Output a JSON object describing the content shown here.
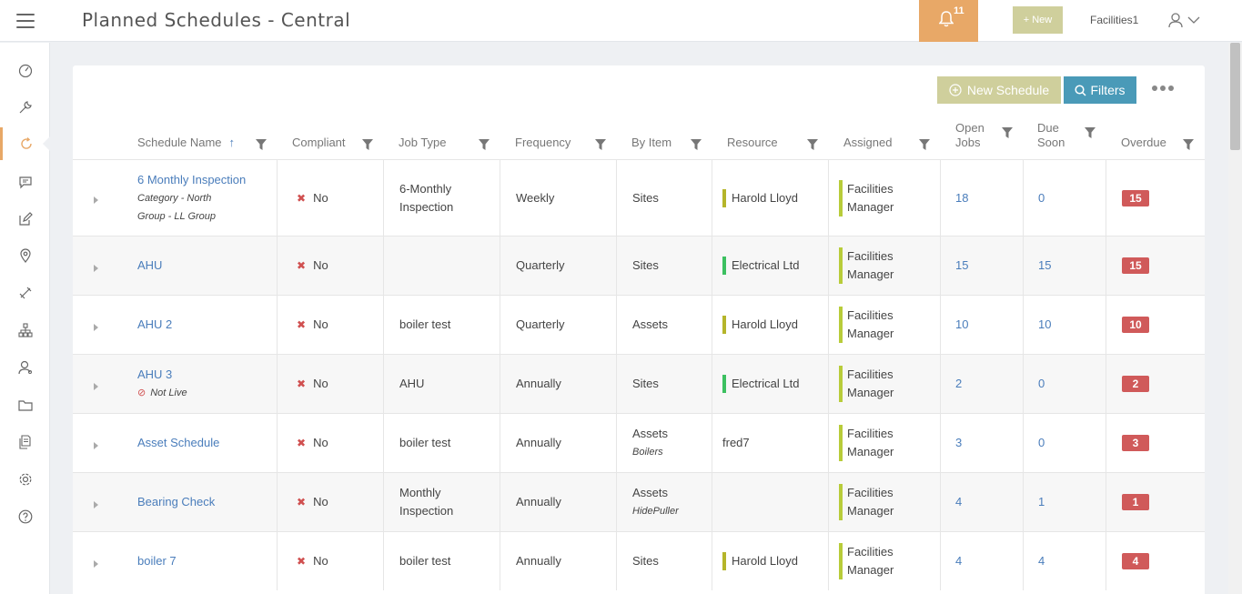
{
  "header": {
    "title": "Planned Schedules - Central",
    "notification_count": "11",
    "new_label": "+ New",
    "user": "Facilities1"
  },
  "sidebar": {
    "items": [
      {
        "icon": "dashboard-icon"
      },
      {
        "icon": "wrench-icon"
      },
      {
        "icon": "refresh-icon",
        "active": true
      },
      {
        "icon": "message-icon"
      },
      {
        "icon": "edit-icon"
      },
      {
        "icon": "location-icon"
      },
      {
        "icon": "tools-icon"
      },
      {
        "icon": "hierarchy-icon"
      },
      {
        "icon": "contacts-icon"
      },
      {
        "icon": "folder-icon"
      },
      {
        "icon": "documents-icon"
      },
      {
        "icon": "settings-icon"
      },
      {
        "icon": "help-icon"
      }
    ]
  },
  "toolbar": {
    "new_schedule_label": "New Schedule",
    "filters_label": "Filters"
  },
  "columns": {
    "name": "Schedule Name",
    "compliant": "Compliant",
    "job_type": "Job Type",
    "frequency": "Frequency",
    "by_item": "By Item",
    "resource": "Resource",
    "assigned": "Assigned",
    "open_jobs_1": "Open",
    "open_jobs_2": "Jobs",
    "due_soon_1": "Due",
    "due_soon_2": "Soon",
    "overdue": "Overdue"
  },
  "colors": {
    "accent_orange": "#e8a867",
    "olive": "#cfcf9c",
    "blue": "#4a9ab8",
    "link": "#4a7dbb",
    "overdue": "#d05a5a",
    "resource_olive": "#b5b52a",
    "resource_green": "#3cc060",
    "assigned_bar": "#b8cc3a"
  },
  "rows": [
    {
      "name": "6 Monthly Inspection",
      "sub1": "Category - North",
      "sub2": "Group - LL Group",
      "compliant": "No",
      "job_type_1": "6-Monthly",
      "job_type_2": "Inspection",
      "frequency": "Weekly",
      "by_item": "Sites",
      "by_item_sub": "",
      "resource": "Harold Lloyd",
      "resource_bar": "olive",
      "assigned_1": "Facilities",
      "assigned_2": "Manager",
      "open_jobs": "18",
      "due_soon": "0",
      "overdue": "15"
    },
    {
      "name": "AHU",
      "sub1": "",
      "sub2": "",
      "compliant": "No",
      "job_type_1": "",
      "job_type_2": "",
      "frequency": "Quarterly",
      "by_item": "Sites",
      "by_item_sub": "",
      "resource": "Electrical Ltd",
      "resource_bar": "green",
      "assigned_1": "Facilities",
      "assigned_2": "Manager",
      "open_jobs": "15",
      "due_soon": "15",
      "overdue": "15"
    },
    {
      "name": "AHU 2",
      "sub1": "",
      "sub2": "",
      "compliant": "No",
      "job_type_1": "boiler test",
      "job_type_2": "",
      "frequency": "Quarterly",
      "by_item": "Assets",
      "by_item_sub": "",
      "resource": "Harold Lloyd",
      "resource_bar": "olive",
      "assigned_1": "Facilities",
      "assigned_2": "Manager",
      "open_jobs": "10",
      "due_soon": "10",
      "overdue": "10"
    },
    {
      "name": "AHU 3",
      "sub1": "Not Live",
      "sub2": "",
      "compliant": "No",
      "job_type_1": "AHU",
      "job_type_2": "",
      "frequency": "Annually",
      "by_item": "Sites",
      "by_item_sub": "",
      "resource": "Electrical Ltd",
      "resource_bar": "green",
      "assigned_1": "Facilities",
      "assigned_2": "Manager",
      "open_jobs": "2",
      "due_soon": "0",
      "overdue": "2"
    },
    {
      "name": "Asset Schedule",
      "sub1": "",
      "sub2": "",
      "compliant": "No",
      "job_type_1": "boiler test",
      "job_type_2": "",
      "frequency": "Annually",
      "by_item": "Assets",
      "by_item_sub": "Boilers",
      "resource": "fred7",
      "resource_bar": "",
      "assigned_1": "Facilities",
      "assigned_2": "Manager",
      "open_jobs": "3",
      "due_soon": "0",
      "overdue": "3"
    },
    {
      "name": "Bearing Check",
      "sub1": "",
      "sub2": "",
      "compliant": "No",
      "job_type_1": "Monthly",
      "job_type_2": "Inspection",
      "frequency": "Annually",
      "by_item": "Assets",
      "by_item_sub": "HidePuller",
      "resource": "",
      "resource_bar": "",
      "assigned_1": "Facilities",
      "assigned_2": "Manager",
      "open_jobs": "4",
      "due_soon": "1",
      "overdue": "1"
    },
    {
      "name": "boiler 7",
      "sub1": "",
      "sub2": "",
      "compliant": "No",
      "job_type_1": "boiler test",
      "job_type_2": "",
      "frequency": "Annually",
      "by_item": "Sites",
      "by_item_sub": "",
      "resource": "Harold Lloyd",
      "resource_bar": "olive",
      "assigned_1": "Facilities",
      "assigned_2": "Manager",
      "open_jobs": "4",
      "due_soon": "4",
      "overdue": "4"
    }
  ]
}
